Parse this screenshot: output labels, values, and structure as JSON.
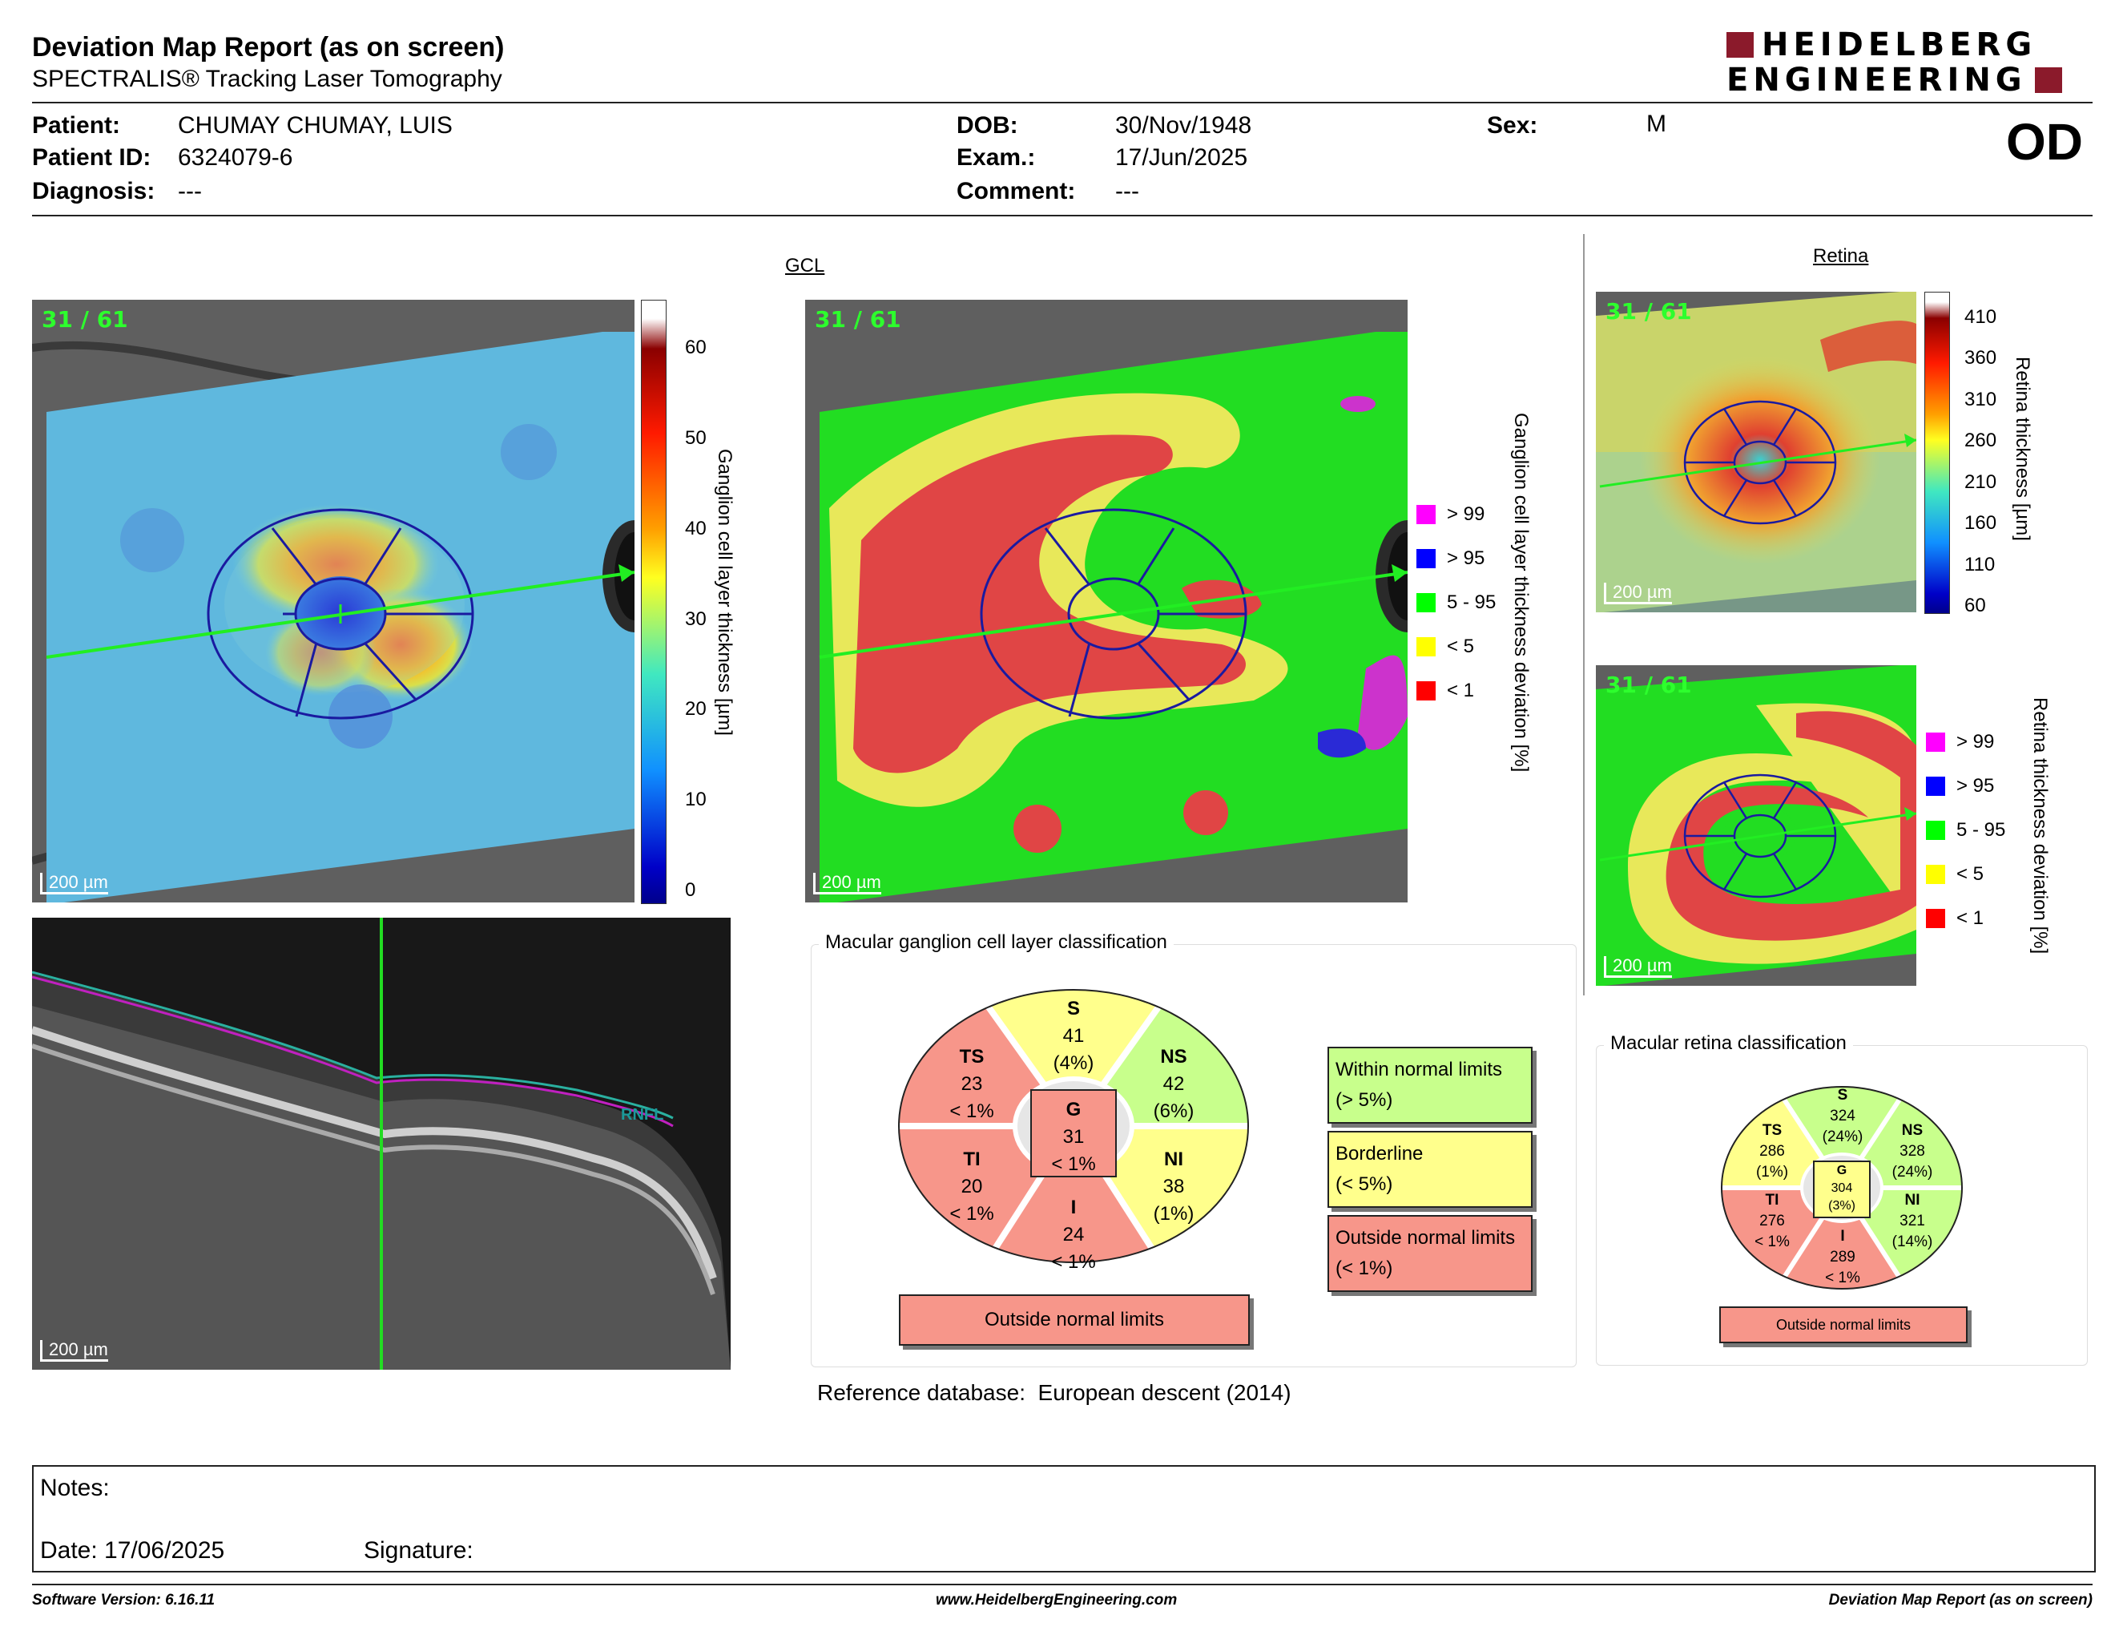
{
  "header": {
    "title": "Deviation Map Report (as on screen)",
    "subtitle": "SPECTRALIS® Tracking Laser Tomography",
    "logo_line1": "HEIDELBERG",
    "logo_line2": "ENGINEERING",
    "logo_color": "#8b1a2b"
  },
  "patient": {
    "patient_label": "Patient:",
    "patient_value": "CHUMAY CHUMAY, LUIS",
    "id_label": "Patient ID:",
    "id_value": "6324079-6",
    "diagnosis_label": "Diagnosis:",
    "diagnosis_value": "---",
    "dob_label": "DOB:",
    "dob_value": "30/Nov/1948",
    "exam_label": "Exam.:",
    "exam_value": "17/Jun/2025",
    "comment_label": "Comment:",
    "comment_value": "---",
    "sex_label": "Sex:",
    "sex_value": "M",
    "eye": "OD"
  },
  "gcl": {
    "section_title": "GCL",
    "scan_label": "31 / 61",
    "scale_label": "200 µm",
    "thickness_axis": "Ganglion cell layer thickness [µm]",
    "thickness_ticks": [
      "60",
      "50",
      "40",
      "30",
      "20",
      "10",
      "0"
    ],
    "deviation_axis": "Ganglion cell layer thickness deviation [%]",
    "deviation_legend": [
      {
        "label": "> 99",
        "color": "#ff00ff"
      },
      {
        "label": "> 95",
        "color": "#0000ff"
      },
      {
        "label": "5 - 95",
        "color": "#00ff00"
      },
      {
        "label": "< 5",
        "color": "#ffff00"
      },
      {
        "label": "< 1",
        "color": "#ff0000"
      }
    ]
  },
  "bscan": {
    "scale_label": "200 µm",
    "layer_label": "RNFL"
  },
  "retina": {
    "section_title": "Retina",
    "scan_label": "31 / 61",
    "scale_label": "200 µm",
    "thickness_axis": "Retina thickness [µm]",
    "thickness_ticks": [
      "410",
      "360",
      "310",
      "260",
      "210",
      "160",
      "110",
      "60"
    ],
    "deviation_axis": "Retina thickness deviation [%]",
    "deviation_legend": [
      {
        "label": "> 99",
        "color": "#ff00ff"
      },
      {
        "label": "> 95",
        "color": "#0000ff"
      },
      {
        "label": "5 - 95",
        "color": "#00ff00"
      },
      {
        "label": "< 5",
        "color": "#ffff00"
      },
      {
        "label": "< 1",
        "color": "#ff0000"
      }
    ]
  },
  "gcl_classification": {
    "title": "Macular ganglion cell layer classification",
    "S": {
      "name": "S",
      "value": "41",
      "pct": "(4%)",
      "color": "#ffff8c"
    },
    "NS": {
      "name": "NS",
      "value": "42",
      "pct": "(6%)",
      "color": "#c8ff8c"
    },
    "NI": {
      "name": "NI",
      "value": "38",
      "pct": "(1%)",
      "color": "#ffff8c"
    },
    "I": {
      "name": "I",
      "value": "24",
      "pct": "< 1%",
      "color": "#f7968a"
    },
    "TI": {
      "name": "TI",
      "value": "20",
      "pct": "< 1%",
      "color": "#f7968a"
    },
    "TS": {
      "name": "TS",
      "value": "23",
      "pct": "< 1%",
      "color": "#f7968a"
    },
    "G": {
      "name": "G",
      "value": "31",
      "pct": "< 1%",
      "color": "#f7968a"
    },
    "status": "Outside normal limits",
    "legend_within_1": "Within normal limits",
    "legend_within_2": "(> 5%)",
    "legend_border_1": "Borderline",
    "legend_border_2": "(< 5%)",
    "legend_outside_1": "Outside normal limits",
    "legend_outside_2": "(< 1%)",
    "color_within": "#c8ff8c",
    "color_border": "#ffff8c",
    "color_outside": "#f7968a"
  },
  "retina_classification": {
    "title": "Macular retina classification",
    "S": {
      "name": "S",
      "value": "324",
      "pct": "(24%)",
      "color": "#c8ff8c"
    },
    "NS": {
      "name": "NS",
      "value": "328",
      "pct": "(24%)",
      "color": "#c8ff8c"
    },
    "NI": {
      "name": "NI",
      "value": "321",
      "pct": "(14%)",
      "color": "#c8ff8c"
    },
    "I": {
      "name": "I",
      "value": "289",
      "pct": "< 1%",
      "color": "#f7968a"
    },
    "TI": {
      "name": "TI",
      "value": "276",
      "pct": "< 1%",
      "color": "#f7968a"
    },
    "TS": {
      "name": "TS",
      "value": "286",
      "pct": "(1%)",
      "color": "#ffff8c"
    },
    "G": {
      "name": "G",
      "value": "304",
      "pct": "(3%)",
      "color": "#ffff8c"
    },
    "status": "Outside normal limits"
  },
  "reference": {
    "label": "Reference database",
    "sep": ":",
    "value": "European descent (2014)"
  },
  "notes": {
    "notes_label": "Notes:",
    "date_label": "Date: 17/06/2025",
    "signature_label": "Signature:"
  },
  "footer": {
    "software": "Software Version: 6.16.11",
    "website": "www.HeidelbergEngineering.com",
    "report_name": "Deviation Map Report (as on screen)"
  }
}
